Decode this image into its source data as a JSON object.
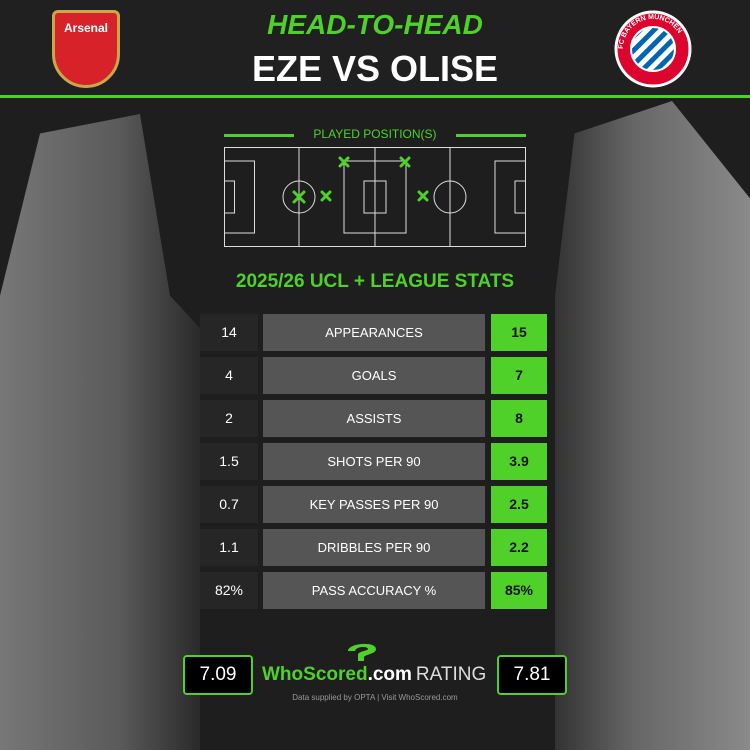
{
  "header": {
    "kicker": "HEAD-TO-HEAD",
    "title": "EZE VS OLISE",
    "left_club": "Arsenal",
    "right_club": "FC BAYERN MÜNCHEN"
  },
  "positions": {
    "label": "PLAYED POSITION(S)"
  },
  "stats": {
    "title": "2025/26 UCL + LEAGUE STATS",
    "rows": [
      {
        "label": "APPEARANCES",
        "left": "14",
        "right": "15"
      },
      {
        "label": "GOALS",
        "left": "4",
        "right": "7"
      },
      {
        "label": "ASSISTS",
        "left": "2",
        "right": "8"
      },
      {
        "label": "SHOTS PER 90",
        "left": "1.5",
        "right": "3.9"
      },
      {
        "label": "KEY PASSES PER 90",
        "left": "0.7",
        "right": "2.5"
      },
      {
        "label": "DRIBBLES PER 90",
        "left": "1.1",
        "right": "2.2"
      },
      {
        "label": "PASS ACCURACY %",
        "left": "82%",
        "right": "85%"
      }
    ]
  },
  "rating": {
    "left": "7.09",
    "right": "7.81",
    "brand_green": "WhoScored",
    "brand_white": ".com",
    "label": "RATING",
    "credit": "Data supplied by OPTA | Visit WhoScored.com"
  },
  "colors": {
    "accent": "#4fd12a"
  }
}
